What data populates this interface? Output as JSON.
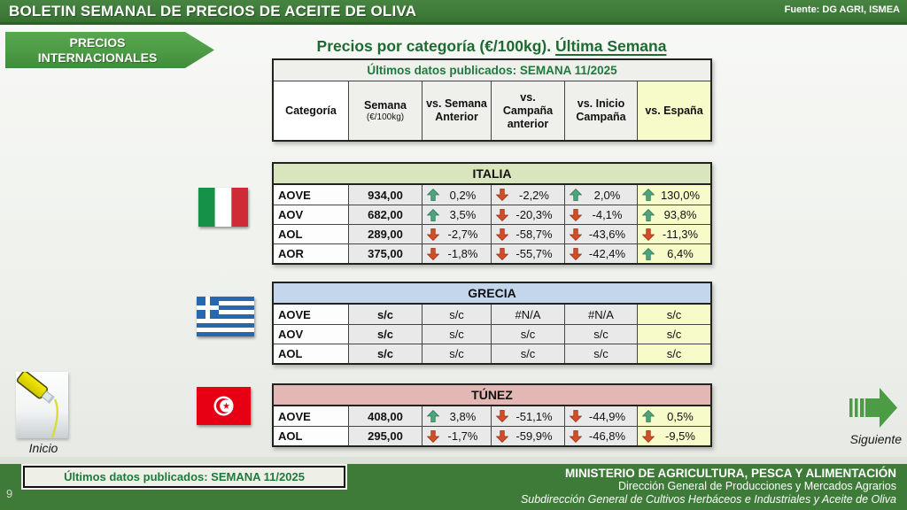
{
  "header": {
    "title": "BOLETIN SEMANAL DE PRECIOS DE ACEITE DE OLIVA",
    "source": "Fuente: DG AGRI, ISMEA"
  },
  "badge": {
    "line1": "PRECIOS",
    "line2": "INTERNACIONALES"
  },
  "main": {
    "title_prefix": "Precios por categoría (€/100kg). ",
    "title_underlined": "Última Semana",
    "published_label": "Últimos datos publicados: SEMANA 11/2025",
    "columns": [
      {
        "label": "Categoría"
      },
      {
        "label": "Semana",
        "sub": "(€/100kg)"
      },
      {
        "label": "vs. Semana Anterior"
      },
      {
        "label": "vs. Campaña anterior"
      },
      {
        "label": "vs. Inicio Campaña"
      },
      {
        "label": "vs. España"
      }
    ]
  },
  "tables": [
    {
      "country": "ITALIA",
      "header_bg": "#d9e5bd",
      "flag": "italy-flag",
      "rows": [
        {
          "label": "AOVE",
          "value": "934,00",
          "cells": [
            {
              "dir": "up",
              "text": "0,2%"
            },
            {
              "dir": "down",
              "text": "-2,2%"
            },
            {
              "dir": "up",
              "text": "2,0%"
            },
            {
              "dir": "up",
              "text": "130,0%"
            }
          ]
        },
        {
          "label": "AOV",
          "value": "682,00",
          "cells": [
            {
              "dir": "up",
              "text": "3,5%"
            },
            {
              "dir": "down",
              "text": "-20,3%"
            },
            {
              "dir": "down",
              "text": "-4,1%"
            },
            {
              "dir": "up",
              "text": "93,8%"
            }
          ]
        },
        {
          "label": "AOL",
          "value": "289,00",
          "cells": [
            {
              "dir": "down",
              "text": "-2,7%"
            },
            {
              "dir": "down",
              "text": "-58,7%"
            },
            {
              "dir": "down",
              "text": "-43,6%"
            },
            {
              "dir": "down",
              "text": "-11,3%"
            }
          ]
        },
        {
          "label": "AOR",
          "value": "375,00",
          "cells": [
            {
              "dir": "down",
              "text": "-1,8%"
            },
            {
              "dir": "down",
              "text": "-55,7%"
            },
            {
              "dir": "down",
              "text": "-42,4%"
            },
            {
              "dir": "up",
              "text": "6,4%"
            }
          ]
        }
      ]
    },
    {
      "country": "GRECIA",
      "header_bg": "#c3d6ec",
      "flag": "greece-flag",
      "rows": [
        {
          "label": "AOVE",
          "value": "s/c",
          "cells": [
            {
              "dir": "none",
              "text": "s/c"
            },
            {
              "dir": "none",
              "text": "#N/A"
            },
            {
              "dir": "none",
              "text": "#N/A"
            },
            {
              "dir": "none",
              "text": "s/c"
            }
          ]
        },
        {
          "label": "AOV",
          "value": "s/c",
          "cells": [
            {
              "dir": "none",
              "text": "s/c"
            },
            {
              "dir": "none",
              "text": "s/c"
            },
            {
              "dir": "none",
              "text": "s/c"
            },
            {
              "dir": "none",
              "text": "s/c"
            }
          ]
        },
        {
          "label": "AOL",
          "value": "s/c",
          "cells": [
            {
              "dir": "none",
              "text": "s/c"
            },
            {
              "dir": "none",
              "text": "s/c"
            },
            {
              "dir": "none",
              "text": "s/c"
            },
            {
              "dir": "none",
              "text": "s/c"
            }
          ]
        }
      ]
    },
    {
      "country": "TÚNEZ",
      "header_bg": "#e2b7b4",
      "flag": "tunisia-flag",
      "rows": [
        {
          "label": "AOVE",
          "value": "408,00",
          "cells": [
            {
              "dir": "up",
              "text": "3,8%"
            },
            {
              "dir": "down",
              "text": "-51,1%"
            },
            {
              "dir": "down",
              "text": "-44,9%"
            },
            {
              "dir": "up",
              "text": "0,5%"
            }
          ]
        },
        {
          "label": "AOL",
          "value": "295,00",
          "cells": [
            {
              "dir": "down",
              "text": "-1,7%"
            },
            {
              "dir": "down",
              "text": "-59,9%"
            },
            {
              "dir": "down",
              "text": "-46,8%"
            },
            {
              "dir": "down",
              "text": "-9,5%"
            }
          ]
        }
      ]
    }
  ],
  "nav": {
    "inicio": "Inicio",
    "siguiente": "Siguiente"
  },
  "footer": {
    "published_label": "Últimos datos publicados: SEMANA 11/2025",
    "page_number": "9",
    "ministry": "MINISTERIO DE AGRICULTURA, PESCA Y ALIMENTACIÓN",
    "direccion": "Dirección General de Producciones y Mercados Agrarios",
    "subdireccion": "Subdirección General de Cultivos Herbáceos e Industriales y Aceite de Oliva"
  },
  "colors": {
    "header_green": "#3e7b39",
    "badge_green": "#4c9b45",
    "title_green": "#1d6a33",
    "published_green": "#1e7a3c",
    "arrow_up": "#4ea47d",
    "arrow_up_dark": "#2e7a58",
    "arrow_down": "#d24e28",
    "arrow_down_dark": "#9c3416",
    "espana_column_bg": "#f7fac9",
    "italia_header_bg": "#d9e5bd",
    "grecia_header_bg": "#c3d6ec",
    "tunez_header_bg": "#e2b7b4"
  }
}
